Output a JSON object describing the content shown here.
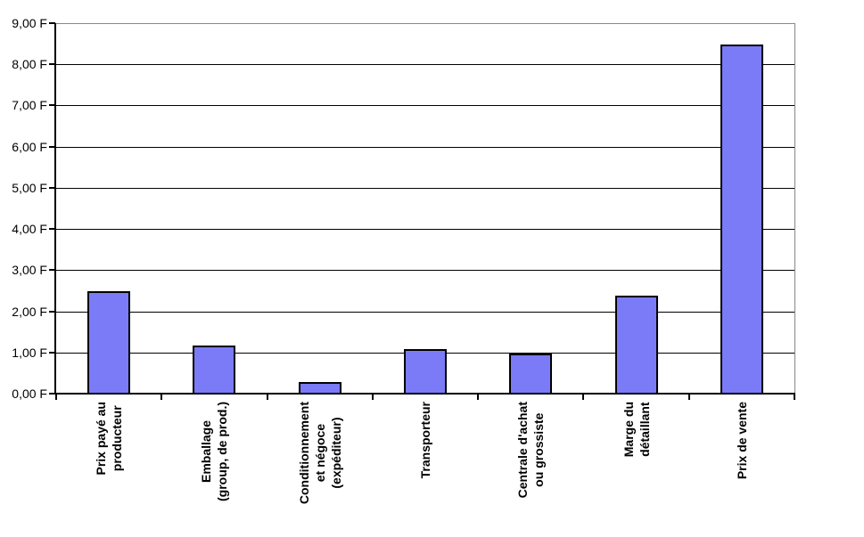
{
  "chart_data": {
    "type": "bar",
    "title": "",
    "xlabel": "",
    "ylabel": "",
    "categories": [
      "Prix payé au\nproducteur",
      "Emballage\n(group, de prod.)",
      "Conditionnement\net négoce\n(expéditeur)",
      "Transporteur",
      "Centrale d'achat\nou grossiste",
      "Marge du\ndétaillant",
      "Prix de vente"
    ],
    "values": [
      2.5,
      1.2,
      0.3,
      1.1,
      1.0,
      2.4,
      8.5
    ],
    "unit": "F",
    "ylim": [
      0,
      9
    ],
    "y_tick_step": 1,
    "y_tick_labels": [
      "0,00 F",
      "1,00 F",
      "2,00 F",
      "3,00 F",
      "4,00 F",
      "5,00 F",
      "6,00 F",
      "7,00 F",
      "8,00 F",
      "9,00 F"
    ],
    "grid": true,
    "legend": false,
    "bar_color": "#7B7BF8",
    "bar_border_color": "#000000",
    "gridline_color": "#000000",
    "axis_color": "#000000",
    "plot_border_color": "#888888",
    "background": "#FFFFFF"
  }
}
